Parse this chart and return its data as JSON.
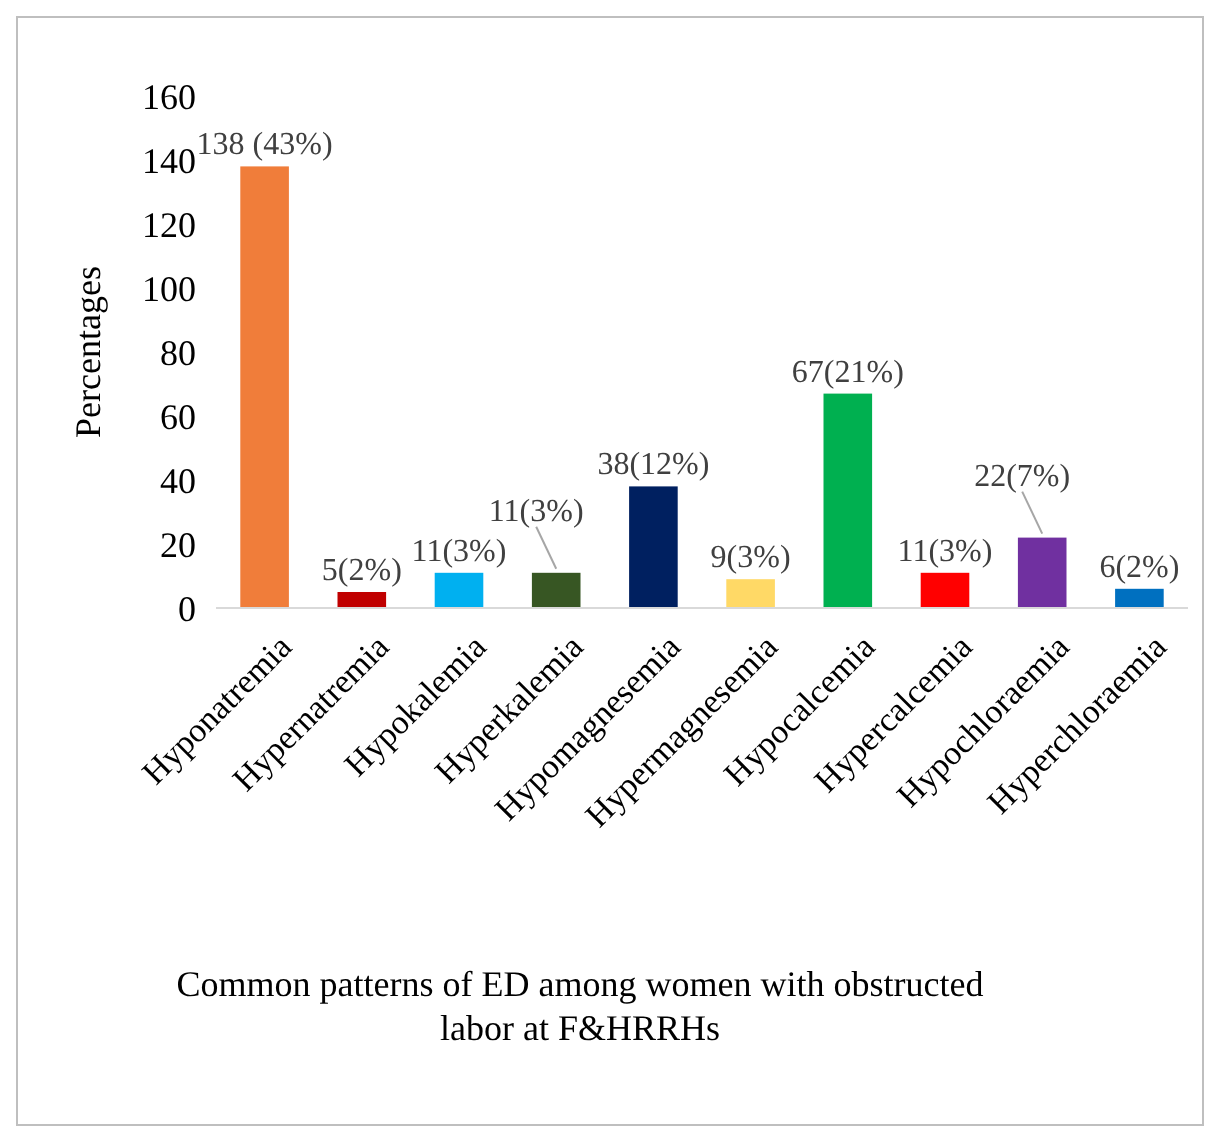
{
  "chart_data": {
    "type": "bar",
    "title": "Common patterns of ED among women with obstructed labor at F&HRRHs",
    "ylabel": "Percentages",
    "categories": [
      "Hyponatremia",
      "Hypernatremia",
      "Hypokalemia",
      "Hyperkalemia",
      "Hypomagnesemia",
      "Hypermagnesemia",
      "Hypocalcemia",
      "Hypercalcemia",
      "Hypochloraemia",
      "Hyperchloraemia"
    ],
    "values": [
      138,
      5,
      11,
      11,
      38,
      9,
      67,
      11,
      22,
      6
    ],
    "colors": [
      "#f07d3a",
      "#c00000",
      "#00b0f0",
      "#375623",
      "#002060",
      "#ffd966",
      "#00b050",
      "#ff0000",
      "#7030a0",
      "#0070c0"
    ],
    "value_labels": [
      "138 (43%)",
      "5(2%)",
      "11(3%)",
      "11(3%)",
      "38(12%)",
      "9(3%)",
      "67(21%)",
      "11(3%)",
      "22(7%)",
      "6(2%)"
    ],
    "ylim": [
      0,
      160
    ],
    "yticks": [
      0,
      20,
      40,
      60,
      80,
      100,
      120,
      140,
      160
    ]
  }
}
